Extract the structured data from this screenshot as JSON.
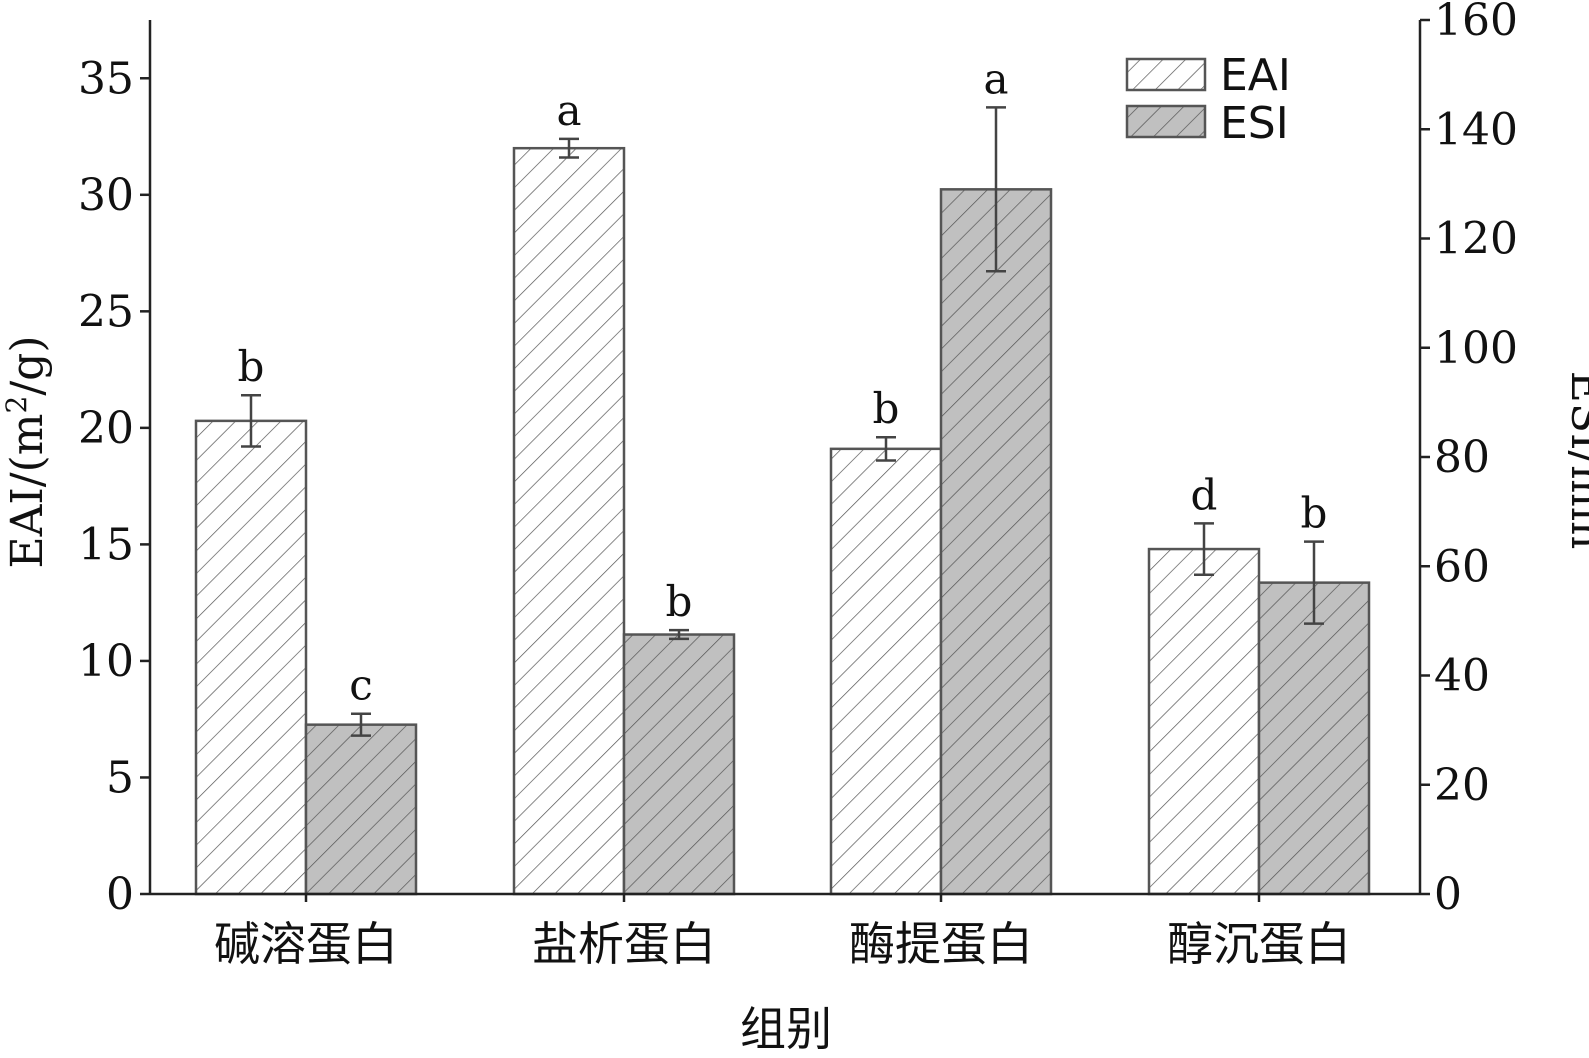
{
  "chart_data": {
    "type": "bar",
    "categories": [
      "碱溶蛋白",
      "盐析蛋白",
      "酶提蛋白",
      "醇沉蛋白"
    ],
    "xlabel": "组别",
    "ylabel_left_main": "EAI/(m",
    "ylabel_left_sup": "2",
    "ylabel_left_tail": "/g)",
    "ylabel_right": "ESI/min",
    "ylim_left": [
      0,
      37.5
    ],
    "ylim_right": [
      0,
      160
    ],
    "yticks_left": [
      0,
      5,
      10,
      15,
      20,
      25,
      30,
      35
    ],
    "yticks_right": [
      0,
      20,
      40,
      60,
      80,
      100,
      120,
      140,
      160
    ],
    "grid": false,
    "legend_position": "top-right",
    "series": [
      {
        "name": "EAI",
        "axis": "left",
        "fill": "#ffffff",
        "values": [
          20.3,
          32.0,
          19.1,
          14.8
        ],
        "errors": [
          1.1,
          0.4,
          0.5,
          1.1
        ],
        "labels": [
          "b",
          "a",
          "b",
          "d"
        ]
      },
      {
        "name": "ESI",
        "axis": "right",
        "fill": "#c0c0c0",
        "values": [
          31,
          47.5,
          129,
          57
        ],
        "errors": [
          2,
          0.8,
          15,
          7.5
        ],
        "labels": [
          "c",
          "b",
          "a",
          "b"
        ]
      }
    ]
  }
}
